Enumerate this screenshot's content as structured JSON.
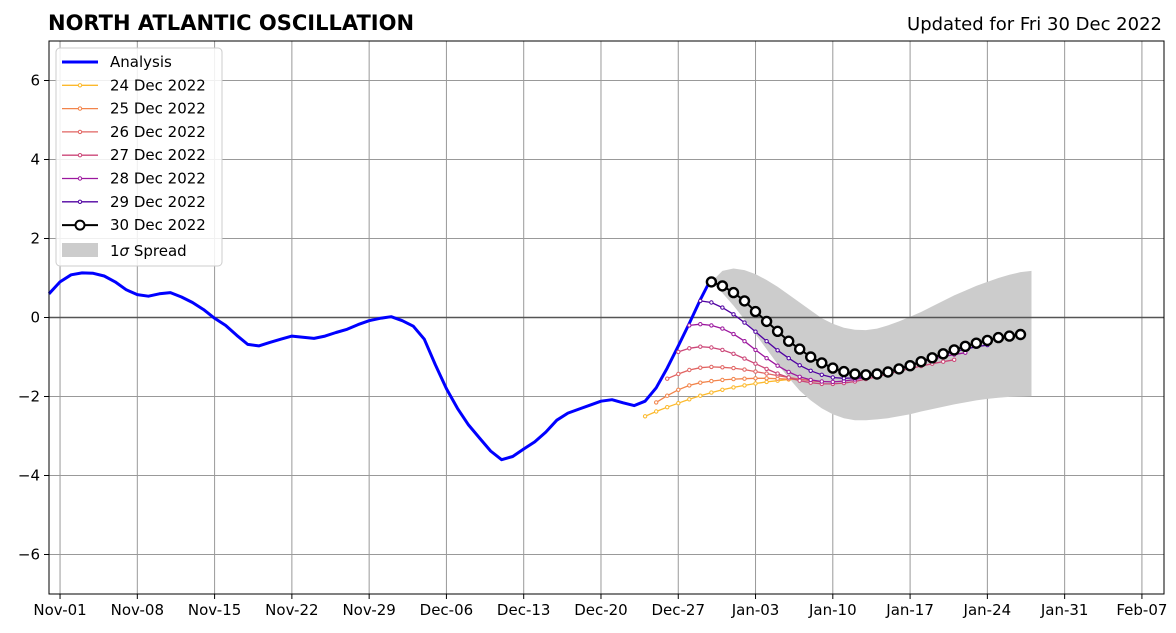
{
  "chart_data": {
    "type": "line",
    "title": "NORTH ATLANTIC OSCILLATION",
    "subtitle": "Updated for Fri 30 Dec 2022",
    "xlabel": "",
    "ylabel": "",
    "x_axis": {
      "start": "Oct-31",
      "end": "Feb-09",
      "tick_labels": [
        "Nov-01",
        "Nov-08",
        "Nov-15",
        "Nov-22",
        "Nov-29",
        "Dec-06",
        "Dec-13",
        "Dec-20",
        "Dec-27",
        "Jan-03",
        "Jan-10",
        "Jan-17",
        "Jan-24",
        "Jan-31",
        "Feb-07"
      ],
      "tick_days": [
        1,
        8,
        15,
        22,
        29,
        36,
        43,
        50,
        57,
        64,
        71,
        78,
        85,
        92,
        99
      ]
    },
    "ylim": [
      -7,
      7
    ],
    "y_ticks": [
      -6,
      -4,
      -2,
      0,
      2,
      4,
      6
    ],
    "y_tick_labels": [
      "−6",
      "−4",
      "−2",
      "0",
      "2",
      "4",
      "6"
    ],
    "grid": true,
    "zero_line": true,
    "legend_position": "top-left",
    "legend_spread_label_prefix": "1",
    "legend_spread_label_sigma": "σ",
    "legend_spread_label_suffix": " Spread",
    "analysis": {
      "name": "Analysis",
      "color": "#0000ff",
      "start_day": 0,
      "values": [
        0.6,
        0.9,
        1.08,
        1.13,
        1.12,
        1.05,
        0.9,
        0.7,
        0.58,
        0.54,
        0.6,
        0.63,
        0.52,
        0.38,
        0.2,
        -0.02,
        -0.2,
        -0.45,
        -0.68,
        -0.72,
        -0.63,
        -0.55,
        -0.47,
        -0.5,
        -0.53,
        -0.47,
        -0.38,
        -0.3,
        -0.18,
        -0.08,
        -0.02,
        0.02,
        -0.08,
        -0.22,
        -0.55,
        -1.2,
        -1.8,
        -2.3,
        -2.72,
        -3.05,
        -3.38,
        -3.6,
        -3.52,
        -3.33,
        -3.15,
        -2.9,
        -2.6,
        -2.42,
        -2.32,
        -2.22,
        -2.12,
        -2.08,
        -2.16,
        -2.23,
        -2.12,
        -1.78,
        -1.28,
        -0.72,
        -0.15,
        0.45,
        1.0
      ]
    },
    "forecasts": [
      {
        "name": "24 Dec 2022",
        "color": "#fcb92c",
        "start_day": 54,
        "values": [
          -2.5,
          -2.38,
          -2.27,
          -2.17,
          -2.07,
          -1.98,
          -1.9,
          -1.83,
          -1.77,
          -1.72,
          -1.67,
          -1.63,
          -1.6,
          -1.57
        ]
      },
      {
        "name": "25 Dec 2022",
        "color": "#f2844b",
        "start_day": 55,
        "values": [
          -2.15,
          -1.98,
          -1.83,
          -1.72,
          -1.65,
          -1.61,
          -1.58,
          -1.56,
          -1.55,
          -1.54,
          -1.54,
          -1.55,
          -1.56,
          -1.58
        ]
      },
      {
        "name": "26 Dec 2022",
        "color": "#e16462",
        "start_day": 56,
        "values": [
          -1.55,
          -1.43,
          -1.33,
          -1.27,
          -1.25,
          -1.26,
          -1.28,
          -1.32,
          -1.37,
          -1.42,
          -1.47,
          -1.52,
          -1.56,
          -1.6,
          -1.63
        ]
      },
      {
        "name": "27 Dec 2022",
        "color": "#cc4778",
        "start_day": 57,
        "values": [
          -0.87,
          -0.78,
          -0.74,
          -0.76,
          -0.82,
          -0.92,
          -1.04,
          -1.17,
          -1.3,
          -1.42,
          -1.52,
          -1.6,
          -1.65,
          -1.68,
          -1.68,
          -1.66,
          -1.62,
          -1.56,
          -1.5,
          -1.43,
          -1.36,
          -1.29,
          -1.23,
          -1.17,
          -1.12,
          -1.07
        ]
      },
      {
        "name": "28 Dec 2022",
        "color": "#9c179e",
        "start_day": 58,
        "values": [
          -0.2,
          -0.17,
          -0.2,
          -0.28,
          -0.42,
          -0.6,
          -0.82,
          -1.03,
          -1.22,
          -1.38,
          -1.5,
          -1.58,
          -1.62,
          -1.63,
          -1.61,
          -1.57,
          -1.51,
          -1.44,
          -1.37,
          -1.29,
          -1.21,
          -1.13,
          -1.06,
          -0.99,
          -0.94,
          -0.89
        ]
      },
      {
        "name": "29 Dec 2022",
        "color": "#5002a2",
        "start_day": 59,
        "values": [
          0.42,
          0.38,
          0.25,
          0.08,
          -0.13,
          -0.36,
          -0.6,
          -0.83,
          -1.03,
          -1.21,
          -1.35,
          -1.45,
          -1.52,
          -1.54,
          -1.53,
          -1.49,
          -1.44,
          -1.37,
          -1.29,
          -1.2,
          -1.11,
          -1.02,
          -0.94,
          -0.87,
          -0.8,
          -0.74,
          -0.7
        ]
      },
      {
        "name": "30 Dec 2022",
        "color": "#000000",
        "start_day": 60,
        "values": [
          0.9,
          0.8,
          0.63,
          0.42,
          0.15,
          -0.1,
          -0.35,
          -0.6,
          -0.8,
          -1.0,
          -1.15,
          -1.28,
          -1.37,
          -1.43,
          -1.45,
          -1.43,
          -1.38,
          -1.3,
          -1.22,
          -1.12,
          -1.02,
          -0.92,
          -0.82,
          -0.73,
          -0.65,
          -0.58,
          -0.51,
          -0.47,
          -0.43
        ]
      }
    ],
    "spread": {
      "name": "1σ Spread",
      "color": "#cccccc",
      "start_day": 60,
      "upper": [
        0.9,
        1.18,
        1.24,
        1.2,
        1.1,
        0.95,
        0.78,
        0.58,
        0.38,
        0.18,
        -0.02,
        -0.16,
        -0.26,
        -0.31,
        -0.32,
        -0.28,
        -0.2,
        -0.1,
        0.02,
        0.14,
        0.28,
        0.42,
        0.56,
        0.68,
        0.8,
        0.9,
        1.0,
        1.08,
        1.15,
        1.18
      ],
      "lower": [
        0.9,
        0.62,
        0.3,
        -0.05,
        -0.42,
        -0.8,
        -1.18,
        -1.53,
        -1.85,
        -2.1,
        -2.3,
        -2.45,
        -2.55,
        -2.6,
        -2.6,
        -2.58,
        -2.55,
        -2.5,
        -2.45,
        -2.38,
        -2.32,
        -2.26,
        -2.2,
        -2.15,
        -2.1,
        -2.06,
        -2.03,
        -2.01,
        -2.0,
        -1.99
      ]
    }
  }
}
